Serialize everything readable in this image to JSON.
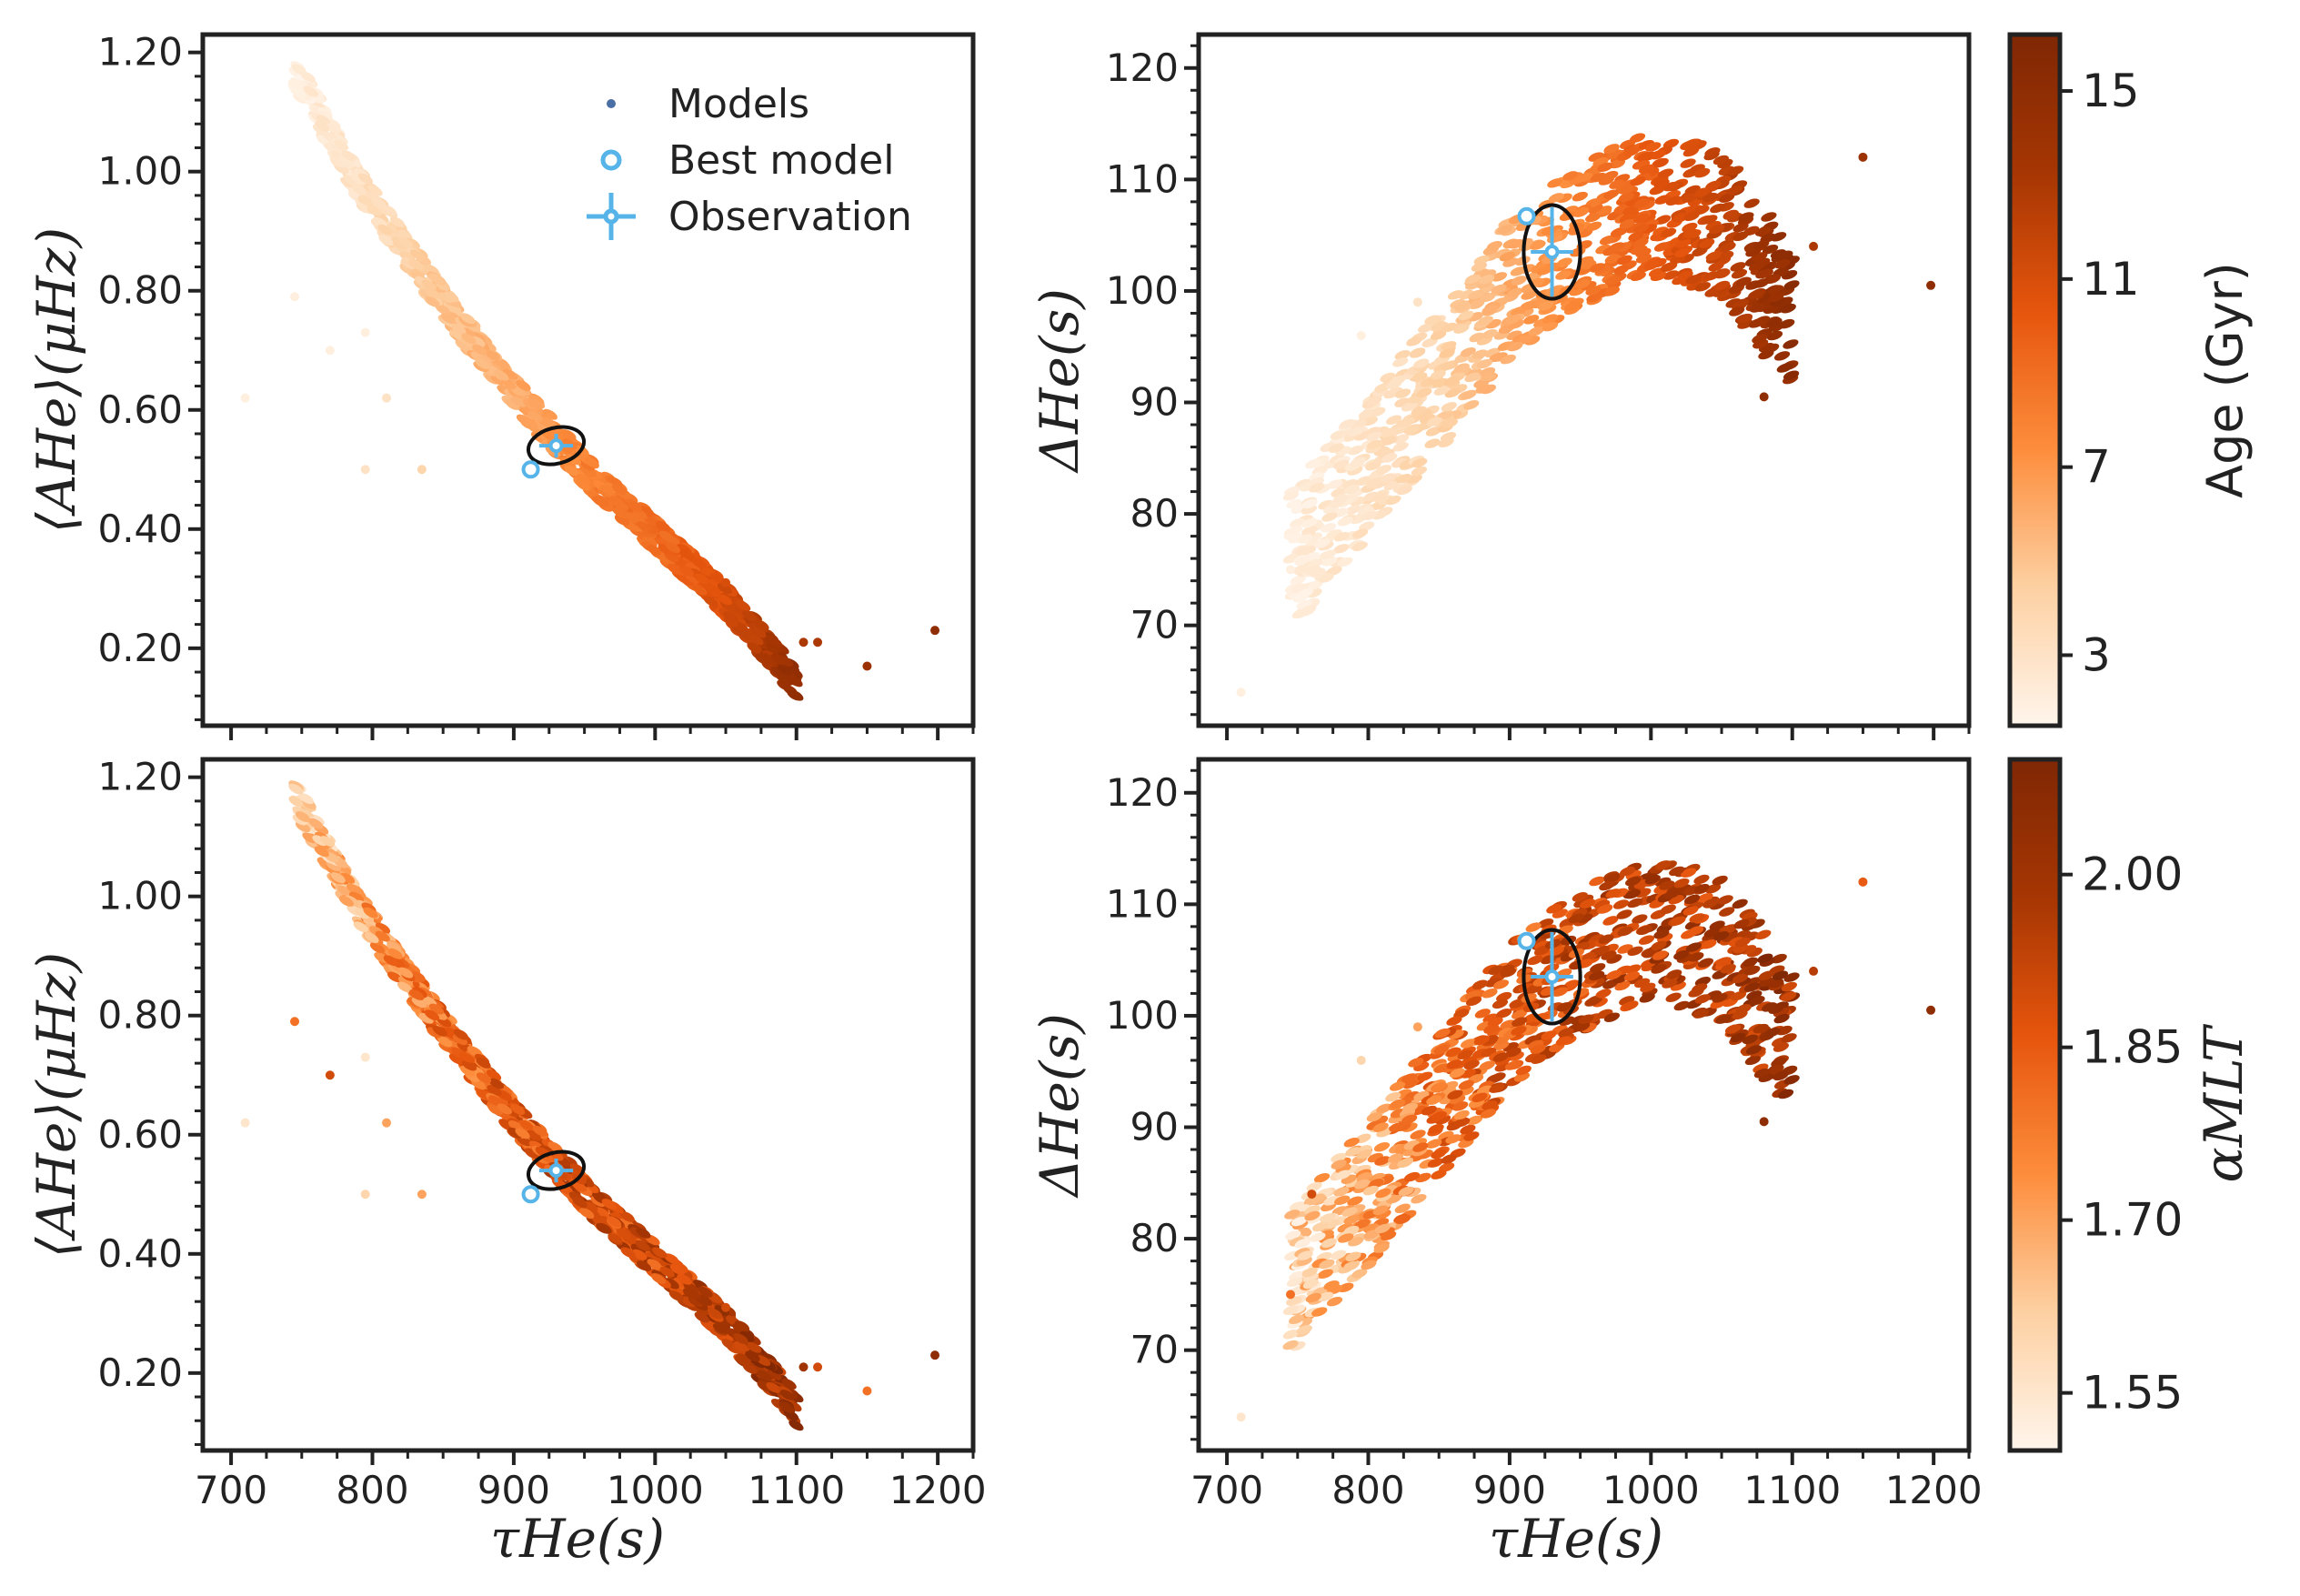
{
  "colors": {
    "observation": "#56b4e9",
    "ellipse": "#111111",
    "axes": "#222222",
    "model_marker": "#4a6fa5",
    "cmap": [
      "#fff5eb",
      "#fdd0a2",
      "#fd8d3c",
      "#e6550d",
      "#a63603",
      "#7f2704"
    ]
  },
  "legend": {
    "models": "Models",
    "best_model": "Best model",
    "observation": "Observation"
  },
  "axis_labels": {
    "x": "τHe(s)",
    "y_top_left": "⟨AHe⟩(μHz)",
    "y_bottom_left": "⟨AHe⟩(μHz)",
    "y_top_right": "ΔHe(s)",
    "y_bottom_right": "ΔHe(s)"
  },
  "colorbars": [
    {
      "label": "Age (Gyr)",
      "ticks": [
        "3",
        "7",
        "11",
        "15"
      ],
      "tick_values": [
        3,
        7,
        11,
        15
      ],
      "range": [
        1.5,
        16.2
      ]
    },
    {
      "label": "αMLT",
      "ticks": [
        "1.55",
        "1.70",
        "1.85",
        "2.00"
      ],
      "tick_values": [
        1.55,
        1.7,
        1.85,
        2.0
      ],
      "range": [
        1.5,
        2.1
      ]
    }
  ],
  "chart_data": [
    {
      "id": "top-left",
      "type": "scatter",
      "color_by": "Age (Gyr)",
      "xlabel": "τHe(s)",
      "ylabel": "⟨AHe⟩(μHz)",
      "xlim": [
        680,
        1225
      ],
      "ylim": [
        0.07,
        1.23
      ],
      "xticks": [
        700,
        800,
        900,
        1000,
        1100,
        1200
      ],
      "yticks": [
        0.2,
        0.4,
        0.6,
        0.8,
        1.0,
        1.2
      ],
      "yticklabels": [
        "0.20",
        "0.40",
        "0.60",
        "0.80",
        "1.00",
        "1.20"
      ],
      "show_xticklabels": false,
      "legend": true,
      "band": [
        [
          745,
          1.17,
          2
        ],
        [
          790,
          0.98,
          3
        ],
        [
          850,
          0.78,
          5
        ],
        [
          900,
          0.63,
          6
        ],
        [
          950,
          0.5,
          8
        ],
        [
          1000,
          0.39,
          9
        ],
        [
          1050,
          0.28,
          11
        ],
        [
          1080,
          0.2,
          13
        ],
        [
          1100,
          0.14,
          15
        ]
      ],
      "band_width": 0.06,
      "outliers": [
        [
          710,
          0.62,
          2
        ],
        [
          745,
          0.79,
          2
        ],
        [
          770,
          0.7,
          2
        ],
        [
          795,
          0.5,
          3
        ],
        [
          795,
          0.73,
          2
        ],
        [
          810,
          0.62,
          3
        ],
        [
          835,
          0.5,
          4
        ],
        [
          1050,
          0.31,
          11
        ],
        [
          1105,
          0.21,
          13
        ],
        [
          1115,
          0.21,
          13
        ],
        [
          1150,
          0.17,
          14
        ],
        [
          1198,
          0.23,
          15
        ]
      ],
      "observation": {
        "x": 930,
        "y": 0.54,
        "xerr": 12,
        "yerr": 0.02
      },
      "best_model": {
        "x": 912,
        "y": 0.5
      },
      "ellipse": {
        "rx": 20,
        "ry": 0.03,
        "angle": -14
      }
    },
    {
      "id": "top-right",
      "type": "scatter",
      "color_by": "Age (Gyr)",
      "xlabel": "τHe(s)",
      "ylabel": "ΔHe(s)",
      "xlim": [
        680,
        1225
      ],
      "ylim": [
        61,
        123
      ],
      "xticks": [
        700,
        800,
        900,
        1000,
        1100,
        1200
      ],
      "yticks": [
        70,
        80,
        90,
        100,
        110,
        120
      ],
      "yticklabels": [
        "70",
        "80",
        "90",
        "100",
        "110",
        "120"
      ],
      "show_xticklabels": false,
      "legend": false,
      "band": [
        [
          745,
          76,
          2
        ],
        [
          800,
          84,
          3
        ],
        [
          850,
          92,
          4
        ],
        [
          900,
          100,
          6
        ],
        [
          950,
          105,
          8
        ],
        [
          1000,
          108,
          10
        ],
        [
          1050,
          106,
          12
        ],
        [
          1080,
          101,
          14
        ],
        [
          1100,
          97,
          15
        ]
      ],
      "band_width": 13,
      "outliers": [
        [
          710,
          64,
          2
        ],
        [
          745,
          75,
          2
        ],
        [
          795,
          96,
          2
        ],
        [
          835,
          99,
          3
        ],
        [
          1080,
          90.5,
          15
        ],
        [
          1115,
          104,
          13
        ],
        [
          1150,
          112,
          14
        ],
        [
          1198,
          100.5,
          15
        ]
      ],
      "observation": {
        "x": 930,
        "y": 103.5,
        "xerr": 15,
        "yerr": 4
      },
      "best_model": {
        "x": 912,
        "y": 106.7
      },
      "ellipse": {
        "rx": 20,
        "ry": 4.2,
        "angle": 0
      }
    },
    {
      "id": "bottom-left",
      "type": "scatter",
      "color_by": "αMLT",
      "xlabel": "τHe(s)",
      "ylabel": "⟨AHe⟩(μHz)",
      "xlim": [
        680,
        1225
      ],
      "ylim": [
        0.07,
        1.23
      ],
      "xticks": [
        700,
        800,
        900,
        1000,
        1100,
        1200
      ],
      "xticklabels": [
        "700",
        "800",
        "900",
        "1000",
        "1100",
        "1200"
      ],
      "yticks": [
        0.2,
        0.4,
        0.6,
        0.8,
        1.0,
        1.2
      ],
      "yticklabels": [
        "0.20",
        "0.40",
        "0.60",
        "0.80",
        "1.00",
        "1.20"
      ],
      "show_xticklabels": true,
      "legend": false,
      "band": [
        [
          745,
          1.17,
          1.6
        ],
        [
          790,
          0.98,
          1.7
        ],
        [
          850,
          0.78,
          1.8
        ],
        [
          900,
          0.63,
          1.85
        ],
        [
          950,
          0.5,
          1.9
        ],
        [
          1000,
          0.39,
          1.9
        ],
        [
          1050,
          0.28,
          1.95
        ],
        [
          1080,
          0.2,
          2.0
        ],
        [
          1100,
          0.14,
          2.0
        ]
      ],
      "band_width": 0.06,
      "outliers": [
        [
          710,
          0.62,
          1.55
        ],
        [
          745,
          0.79,
          1.8
        ],
        [
          770,
          0.7,
          1.9
        ],
        [
          795,
          0.5,
          1.6
        ],
        [
          795,
          0.73,
          1.55
        ],
        [
          810,
          0.62,
          1.7
        ],
        [
          835,
          0.5,
          1.7
        ],
        [
          1050,
          0.31,
          1.9
        ],
        [
          1105,
          0.21,
          2.0
        ],
        [
          1115,
          0.21,
          1.9
        ],
        [
          1150,
          0.17,
          1.8
        ],
        [
          1198,
          0.23,
          2.05
        ]
      ],
      "observation": {
        "x": 930,
        "y": 0.54,
        "xerr": 12,
        "yerr": 0.02
      },
      "best_model": {
        "x": 912,
        "y": 0.5
      },
      "ellipse": {
        "rx": 20,
        "ry": 0.03,
        "angle": -14
      }
    },
    {
      "id": "bottom-right",
      "type": "scatter",
      "color_by": "αMLT",
      "xlabel": "τHe(s)",
      "ylabel": "ΔHe(s)",
      "xlim": [
        680,
        1225
      ],
      "ylim": [
        61,
        123
      ],
      "xticks": [
        700,
        800,
        900,
        1000,
        1100,
        1200
      ],
      "xticklabels": [
        "700",
        "800",
        "900",
        "1000",
        "1100",
        "1200"
      ],
      "yticks": [
        70,
        80,
        90,
        100,
        110,
        120
      ],
      "yticklabels": [
        "70",
        "80",
        "90",
        "100",
        "110",
        "120"
      ],
      "show_xticklabels": true,
      "legend": false,
      "band": [
        [
          745,
          76,
          1.6
        ],
        [
          800,
          84,
          1.7
        ],
        [
          850,
          92,
          1.8
        ],
        [
          900,
          100,
          1.85
        ],
        [
          950,
          105,
          1.9
        ],
        [
          1000,
          108,
          1.95
        ],
        [
          1050,
          106,
          1.95
        ],
        [
          1080,
          101,
          2.0
        ],
        [
          1100,
          97,
          2.0
        ]
      ],
      "band_width": 13,
      "outliers": [
        [
          710,
          64,
          1.55
        ],
        [
          745,
          75,
          1.8
        ],
        [
          760,
          84,
          1.9
        ],
        [
          795,
          96,
          1.6
        ],
        [
          835,
          99,
          1.7
        ],
        [
          1080,
          90.5,
          2.05
        ],
        [
          1115,
          104,
          1.95
        ],
        [
          1150,
          112,
          1.85
        ],
        [
          1198,
          100.5,
          2.05
        ]
      ],
      "observation": {
        "x": 930,
        "y": 103.5,
        "xerr": 15,
        "yerr": 4
      },
      "best_model": {
        "x": 912,
        "y": 106.7
      },
      "ellipse": {
        "rx": 20,
        "ry": 4.2,
        "angle": 0
      }
    }
  ]
}
